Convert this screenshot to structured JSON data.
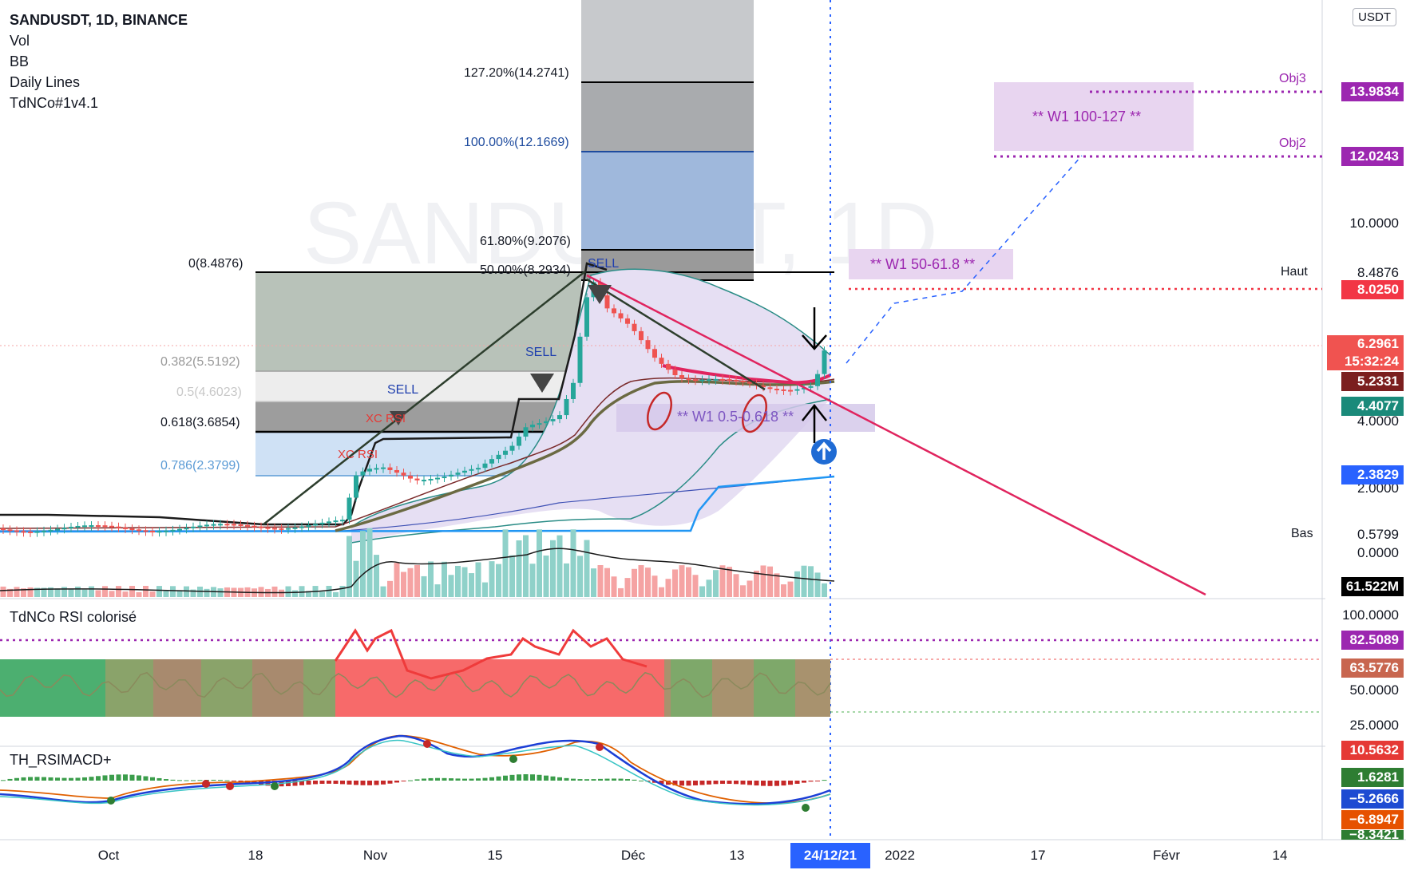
{
  "legend": {
    "symbol": "SANDUSDT, 1D, BINANCE",
    "indicators": [
      "Vol",
      "BB",
      "Daily Lines",
      "TdNCo#1v4.1"
    ]
  },
  "watermark": "SANDUSDT, 1D",
  "currency_badge": "USDT",
  "panes": {
    "rsi_title": "TdNCo RSI colorisé",
    "macd_title": "TH_RSIMACD+"
  },
  "price_axis": {
    "ticks": [
      "10.0000",
      "4.0000",
      "2.0000",
      "0.0000"
    ],
    "haut_label": "Haut",
    "haut_value": "8.4876",
    "bas_label": "Bas",
    "bas_value": "0.5799",
    "labels": [
      {
        "value": "13.9834",
        "color": "#9c27b0"
      },
      {
        "value": "12.0243",
        "color": "#9c27b0"
      },
      {
        "value": "8.0250",
        "color": "#f23645"
      },
      {
        "value": "6.2961",
        "color": "#f05350",
        "sub": "15:32:24"
      },
      {
        "value": "5.2331",
        "color": "#7b1f1f"
      },
      {
        "value": "4.4077",
        "color": "#1a8a7a"
      },
      {
        "value": "2.3829",
        "color": "#2962ff"
      },
      {
        "value": "61.522M",
        "color": "#000000"
      }
    ]
  },
  "rsi_axis": {
    "ticks": [
      "100.0000",
      "50.0000",
      "25.0000"
    ],
    "labels": [
      {
        "value": "82.5089",
        "color": "#9c27b0"
      },
      {
        "value": "63.5776",
        "color": "#c8664f"
      }
    ]
  },
  "macd_axis": {
    "labels": [
      {
        "value": "10.5632",
        "color": "#e53935"
      },
      {
        "value": "1.6281",
        "color": "#2e7d32"
      },
      {
        "value": "−5.2666",
        "color": "#1e4bd2"
      },
      {
        "value": "−6.8947",
        "color": "#e65100"
      },
      {
        "value": "−8.3421",
        "color": "#2e7d32"
      }
    ]
  },
  "time_axis": {
    "ticks": [
      "Oct",
      "18",
      "Nov",
      "15",
      "Déc",
      "13",
      "2022",
      "17",
      "Févr",
      "14"
    ],
    "current": "24/12/21"
  },
  "fib_left": [
    {
      "text": "0(8.4876)",
      "color": "#131722"
    },
    {
      "text": "0.382(5.5192)",
      "color": "#999999"
    },
    {
      "text": "0.5(4.6023)",
      "color": "#c8c8c8"
    },
    {
      "text": "0.618(3.6854)",
      "color": "#131722"
    },
    {
      "text": "0.786(2.3799)",
      "color": "#5b9bd5"
    }
  ],
  "fib_right": [
    {
      "text": "127.20%(14.2741)",
      "color": "#131722"
    },
    {
      "text": "100.00%(12.1669)",
      "color": "#1e4b9e"
    },
    {
      "text": "61.80%(9.2076)",
      "color": "#131722"
    },
    {
      "text": "50.00%(8.2934)",
      "color": "#131722"
    }
  ],
  "annotations": {
    "zone_w1_100_127": "** W1 100-127 **",
    "zone_w1_50_618": "** W1 50-61.8 **",
    "zone_w1_05_0618": "** W1 0.5-0.618 **",
    "obj3": "Obj3",
    "obj2": "Obj2",
    "sell": "SELL",
    "xc_rsi": "XC RSI"
  },
  "colors": {
    "bull": "#26a69a",
    "bear": "#ef5350",
    "trendline": "#e0245e",
    "target": "#9c27b0",
    "bb_fill": "#e9e2f5",
    "fib_blue": "#9fb8dc",
    "fib_gray": "#7d7d7d"
  }
}
